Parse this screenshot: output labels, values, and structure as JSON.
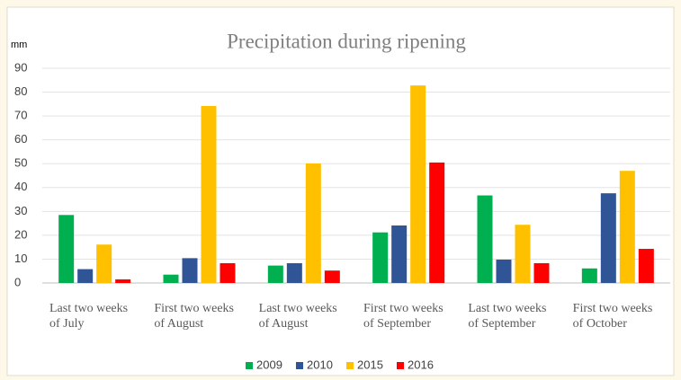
{
  "chart_data": {
    "type": "bar",
    "title": "Precipitation during ripening",
    "y_label": "mm",
    "categories": [
      [
        "Last two weeks",
        "of July"
      ],
      [
        "First two weeks",
        "of August"
      ],
      [
        "Last two weeks",
        "of August"
      ],
      [
        "First two  weeks",
        "of September"
      ],
      [
        "Last two weeks",
        "of September"
      ],
      [
        "First two weeks",
        "of October"
      ]
    ],
    "series": [
      {
        "name": "2009",
        "color": "#00b050",
        "values": [
          28.5,
          3.5,
          7.3,
          21.2,
          36.7,
          6.1
        ]
      },
      {
        "name": "2010",
        "color": "#2f5597",
        "values": [
          5.8,
          10.4,
          8.3,
          24.1,
          9.8,
          37.6
        ]
      },
      {
        "name": "2015",
        "color": "#ffc000",
        "values": [
          16.1,
          74.2,
          50.1,
          82.8,
          24.4,
          47.0
        ]
      },
      {
        "name": "2016",
        "color": "#ff0000",
        "values": [
          1.5,
          8.3,
          5.2,
          50.5,
          8.3,
          14.3
        ]
      }
    ],
    "ylim": [
      0,
      90
    ],
    "yticks": [
      0,
      10,
      20,
      30,
      40,
      50,
      60,
      70,
      80,
      90
    ],
    "grid": true,
    "legend": "bottom"
  }
}
